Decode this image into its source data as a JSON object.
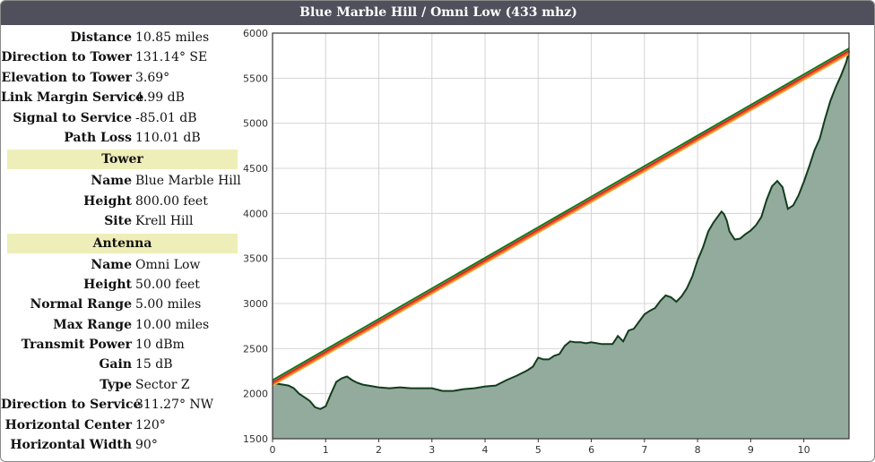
{
  "title": "Blue Marble Hill / Omni Low (433 mhz)",
  "summary": [
    {
      "label": "Distance",
      "value": "10.85 miles"
    },
    {
      "label": "Direction to Tower",
      "value": "131.14° SE"
    },
    {
      "label": "Elevation to Tower",
      "value": "3.69°"
    },
    {
      "label": "Link Margin Service",
      "value": "4.99 dB"
    },
    {
      "label": "Signal to Service",
      "value": "-85.01 dB"
    },
    {
      "label": "Path Loss",
      "value": "110.01 dB"
    }
  ],
  "tower": {
    "heading": "Tower",
    "rows": [
      {
        "label": "Name",
        "value": "Blue Marble Hill"
      },
      {
        "label": "Height",
        "value": "800.00 feet"
      },
      {
        "label": "Site",
        "value": "Krell Hill"
      }
    ]
  },
  "antenna": {
    "heading": "Antenna",
    "rows": [
      {
        "label": "Name",
        "value": "Omni Low"
      },
      {
        "label": "Height",
        "value": "50.00 feet"
      },
      {
        "label": "Normal Range",
        "value": "5.00 miles"
      },
      {
        "label": "Max Range",
        "value": "10.00 miles"
      },
      {
        "label": "Transmit Power",
        "value": "10 dBm"
      },
      {
        "label": "Gain",
        "value": "15 dB"
      },
      {
        "label": "Type",
        "value": "Sector Z"
      },
      {
        "label": "Direction to Service",
        "value": "311.27° NW"
      },
      {
        "label": "Horizontal Center",
        "value": "120°"
      },
      {
        "label": "Horizontal Width",
        "value": "90°"
      }
    ]
  },
  "chart_data": {
    "type": "area",
    "xlim": [
      0,
      10.85
    ],
    "ylim": [
      1500,
      6000
    ],
    "x_ticks": [
      0,
      1,
      2,
      3,
      4,
      5,
      6,
      7,
      8,
      9,
      10
    ],
    "y_ticks": [
      1500,
      2000,
      2500,
      3000,
      3500,
      4000,
      4500,
      5000,
      5500,
      6000
    ],
    "grid": true,
    "terrain": {
      "color": "#93ab9c",
      "line_color": "#123d1e",
      "x": [
        0,
        0.1,
        0.2,
        0.3,
        0.4,
        0.5,
        0.6,
        0.7,
        0.8,
        0.9,
        1.0,
        1.1,
        1.2,
        1.3,
        1.4,
        1.5,
        1.6,
        1.7,
        1.8,
        1.9,
        2.0,
        2.2,
        2.4,
        2.6,
        2.8,
        3.0,
        3.2,
        3.4,
        3.6,
        3.8,
        4.0,
        4.2,
        4.4,
        4.6,
        4.8,
        4.9,
        5.0,
        5.1,
        5.2,
        5.3,
        5.4,
        5.5,
        5.6,
        5.7,
        5.8,
        5.9,
        6.0,
        6.2,
        6.4,
        6.5,
        6.6,
        6.7,
        6.8,
        6.9,
        7.0,
        7.1,
        7.2,
        7.3,
        7.4,
        7.5,
        7.6,
        7.7,
        7.8,
        7.9,
        8.0,
        8.1,
        8.2,
        8.3,
        8.4,
        8.45,
        8.5,
        8.55,
        8.6,
        8.7,
        8.8,
        8.9,
        9.0,
        9.1,
        9.2,
        9.3,
        9.4,
        9.5,
        9.6,
        9.7,
        9.8,
        9.9,
        10.0,
        10.1,
        10.2,
        10.3,
        10.4,
        10.5,
        10.6,
        10.7,
        10.8,
        10.85
      ],
      "y": [
        2110,
        2110,
        2100,
        2090,
        2060,
        2000,
        1960,
        1920,
        1850,
        1830,
        1860,
        2000,
        2130,
        2170,
        2190,
        2150,
        2120,
        2100,
        2090,
        2080,
        2070,
        2060,
        2070,
        2060,
        2060,
        2060,
        2030,
        2030,
        2050,
        2060,
        2080,
        2090,
        2150,
        2200,
        2260,
        2300,
        2400,
        2380,
        2380,
        2420,
        2440,
        2530,
        2580,
        2570,
        2570,
        2560,
        2570,
        2550,
        2550,
        2640,
        2580,
        2700,
        2720,
        2800,
        2880,
        2920,
        2950,
        3030,
        3090,
        3070,
        3020,
        3080,
        3170,
        3300,
        3480,
        3620,
        3800,
        3900,
        3980,
        4020,
        3990,
        3920,
        3800,
        3710,
        3720,
        3770,
        3810,
        3870,
        3960,
        4150,
        4300,
        4360,
        4290,
        4050,
        4090,
        4200,
        4350,
        4520,
        4700,
        4830,
        5050,
        5250,
        5400,
        5530,
        5680,
        5800
      ]
    },
    "series": [
      {
        "color": "#0e7a12",
        "x": [
          0,
          10.85
        ],
        "y": [
          2150,
          5830
        ]
      },
      {
        "color": "#f0b64f",
        "x": [
          0,
          10.85
        ],
        "y": [
          2090,
          5770
        ]
      },
      {
        "color": "#e8701a",
        "x": [
          0,
          10.85
        ],
        "y": [
          2105,
          5785
        ]
      },
      {
        "color": "#d9232a",
        "x": [
          0,
          10.85
        ],
        "y": [
          2125,
          5805
        ]
      }
    ]
  }
}
